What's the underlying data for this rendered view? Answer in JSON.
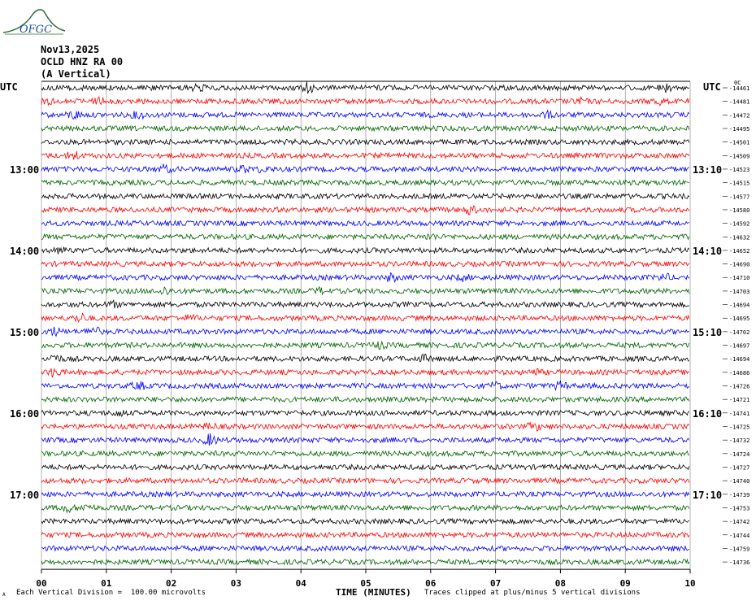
{
  "logo": {
    "text": "OFGC"
  },
  "header": {
    "date": "Nov13,2025",
    "station": "OCLD HNZ RA 00",
    "component": "(A Vertical)",
    "utc_left": "UTC",
    "utc_right": "UTC"
  },
  "footer": {
    "scale_note": "Each Vertical Division =  100.00 microvolts",
    "xlabel": "TIME (MINUTES)",
    "clip_note": "Traces clipped at plus/minus 5 vertical divisions",
    "corner_mark": "A"
  },
  "colors": {
    "trace_cycle": [
      "#000000",
      "#ff0000",
      "#0000ff",
      "#006400"
    ],
    "grid": "#808080",
    "logo": "#2e6b3a",
    "logo_text": "#1f4f9a"
  },
  "chart_data": {
    "type": "line",
    "title": "",
    "xlabel": "TIME (MINUTES)",
    "x_ticks": [
      "00",
      "01",
      "02",
      "03",
      "04",
      "05",
      "06",
      "07",
      "08",
      "09",
      "10"
    ],
    "xlim": [
      0,
      10
    ],
    "trace_count": 36,
    "minutes_per_trace": 10,
    "left_time_labels": [
      {
        "trace": 6,
        "label": "13:00"
      },
      {
        "trace": 12,
        "label": "14:00"
      },
      {
        "trace": 18,
        "label": "15:00"
      },
      {
        "trace": 24,
        "label": "16:00"
      },
      {
        "trace": 30,
        "label": "17:00"
      }
    ],
    "right_time_labels": [
      {
        "trace": 6,
        "label": "13:10"
      },
      {
        "trace": 12,
        "label": "14:10"
      },
      {
        "trace": 18,
        "label": "15:10"
      },
      {
        "trace": 24,
        "label": "16:10"
      },
      {
        "trace": 30,
        "label": "17:10"
      }
    ],
    "right_top_label": "0C",
    "trace_offsets": [
      -14461,
      -14481,
      -14472,
      -14495,
      -14501,
      -14509,
      -14523,
      -14515,
      -14577,
      -14580,
      -14592,
      -14632,
      -14652,
      -14690,
      -14710,
      -14703,
      -14694,
      -14695,
      -14702,
      -14697,
      -14694,
      -14686,
      -14726,
      -14721,
      -14741,
      -14725,
      -14732,
      -14724,
      -14727,
      -14740,
      -14739,
      -14753,
      -14742,
      -14744,
      -14759,
      -14736
    ],
    "events": [
      {
        "trace": 0,
        "minute": 2.4,
        "amp": 2.2
      },
      {
        "trace": 0,
        "minute": 4.1,
        "amp": 2.6
      },
      {
        "trace": 0,
        "minute": 9.6,
        "amp": 2.2
      },
      {
        "trace": 1,
        "minute": 0.1,
        "amp": 2.2
      },
      {
        "trace": 1,
        "minute": 0.9,
        "amp": 2.0
      },
      {
        "trace": 1,
        "minute": 8.3,
        "amp": 2.0
      },
      {
        "trace": 1,
        "minute": 9.5,
        "amp": 2.2
      },
      {
        "trace": 2,
        "minute": 0.5,
        "amp": 2.4
      },
      {
        "trace": 2,
        "minute": 1.5,
        "amp": 2.0
      },
      {
        "trace": 2,
        "minute": 7.8,
        "amp": 1.8
      },
      {
        "trace": 5,
        "minute": 0.5,
        "amp": 2.4
      },
      {
        "trace": 6,
        "minute": 1.9,
        "amp": 2.2
      },
      {
        "trace": 6,
        "minute": 3.1,
        "amp": 2.0
      },
      {
        "trace": 6,
        "minute": 3.4,
        "amp": 1.8
      },
      {
        "trace": 9,
        "minute": 6.6,
        "amp": 2.4
      },
      {
        "trace": 11,
        "minute": 6.0,
        "amp": 1.8
      },
      {
        "trace": 12,
        "minute": 0.3,
        "amp": 1.8
      },
      {
        "trace": 14,
        "minute": 5.4,
        "amp": 2.2
      },
      {
        "trace": 14,
        "minute": 6.5,
        "amp": 1.8
      },
      {
        "trace": 14,
        "minute": 9.6,
        "amp": 2.0
      },
      {
        "trace": 15,
        "minute": 1.9,
        "amp": 2.2
      },
      {
        "trace": 15,
        "minute": 4.3,
        "amp": 1.8
      },
      {
        "trace": 16,
        "minute": 1.1,
        "amp": 1.8
      },
      {
        "trace": 17,
        "minute": 0.6,
        "amp": 2.4
      },
      {
        "trace": 17,
        "minute": 2.3,
        "amp": 1.8
      },
      {
        "trace": 18,
        "minute": 0.2,
        "amp": 2.2
      },
      {
        "trace": 18,
        "minute": 0.8,
        "amp": 2.6
      },
      {
        "trace": 19,
        "minute": 5.2,
        "amp": 2.0
      },
      {
        "trace": 20,
        "minute": 0.2,
        "amp": 2.4
      },
      {
        "trace": 20,
        "minute": 5.9,
        "amp": 2.0
      },
      {
        "trace": 21,
        "minute": 0.2,
        "amp": 2.4
      },
      {
        "trace": 21,
        "minute": 7.6,
        "amp": 2.0
      },
      {
        "trace": 22,
        "minute": 1.5,
        "amp": 2.2
      },
      {
        "trace": 22,
        "minute": 7.0,
        "amp": 2.0
      },
      {
        "trace": 22,
        "minute": 8.0,
        "amp": 2.2
      },
      {
        "trace": 24,
        "minute": 1.2,
        "amp": 1.8
      },
      {
        "trace": 25,
        "minute": 2.6,
        "amp": 1.8
      },
      {
        "trace": 25,
        "minute": 7.6,
        "amp": 2.2
      },
      {
        "trace": 26,
        "minute": 2.6,
        "amp": 2.8
      },
      {
        "trace": 31,
        "minute": 0.4,
        "amp": 2.2
      },
      {
        "trace": 31,
        "minute": 0.7,
        "amp": 2.0
      }
    ]
  }
}
